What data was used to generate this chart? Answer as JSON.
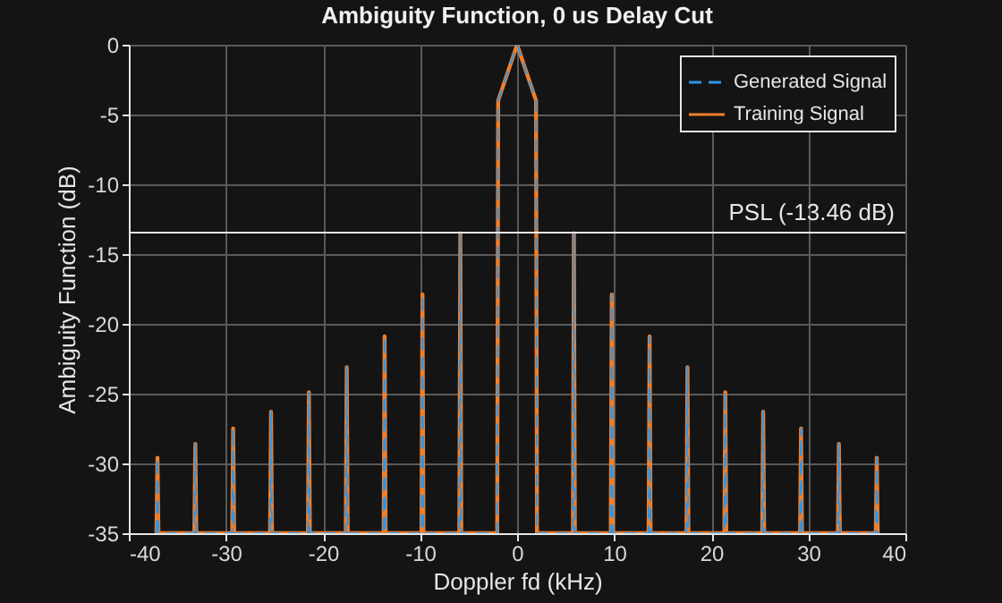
{
  "chart_data": {
    "type": "line",
    "title": "Ambiguity Function, 0 us Delay Cut",
    "xlabel": "Doppler fd (kHz)",
    "ylabel": "Ambiguity Function (dB)",
    "x": [
      -37.15,
      -37.05,
      -36.95,
      -33.25,
      -33.15,
      -33.05,
      -29.35,
      -29.25,
      -29.15,
      -25.45,
      -25.35,
      -25.25,
      -21.55,
      -21.45,
      -21.35,
      -17.65,
      -17.55,
      -17.45,
      -13.75,
      -13.65,
      -13.55,
      -9.85,
      -9.75,
      -9.65,
      -5.95,
      -5.85,
      -5.75,
      -2.05,
      -1.95,
      0,
      1.95,
      2.05,
      5.75,
      5.85,
      5.95,
      9.65,
      9.75,
      9.85,
      13.55,
      13.65,
      13.75,
      17.45,
      17.55,
      17.65,
      21.35,
      21.45,
      21.55,
      25.25,
      25.35,
      25.45,
      29.15,
      29.25,
      29.35,
      33.05,
      33.15,
      33.25,
      36.95,
      37.05,
      37.15
    ],
    "series": [
      {
        "name": "Generated Signal",
        "color": "#2d95e8",
        "line_style": "dashed",
        "values": [
          -35,
          -29.6,
          -35,
          -35,
          -28.6,
          -35,
          -35,
          -27.5,
          -35,
          -35,
          -26.3,
          -35,
          -35,
          -24.9,
          -35,
          -35,
          -23.1,
          -35,
          -35,
          -20.9,
          -35,
          -35,
          -17.9,
          -35,
          -35,
          -13.5,
          -35,
          -35,
          -4,
          0,
          -4,
          -35,
          -35,
          -13.5,
          -35,
          -35,
          -17.9,
          -35,
          -35,
          -20.9,
          -35,
          -35,
          -23.1,
          -35,
          -35,
          -24.9,
          -35,
          -35,
          -26.3,
          -35,
          -35,
          -27.5,
          -35,
          -35,
          -28.6,
          -35,
          -35,
          -29.6,
          -35
        ]
      },
      {
        "name": "Training Signal",
        "color": "#f07f2a",
        "line_style": "solid",
        "values": [
          -35,
          -29.6,
          -35,
          -35,
          -28.6,
          -35,
          -35,
          -27.5,
          -35,
          -35,
          -26.3,
          -35,
          -35,
          -24.9,
          -35,
          -35,
          -23.1,
          -35,
          -35,
          -20.9,
          -35,
          -35,
          -17.9,
          -35,
          -35,
          -13.5,
          -35,
          -35,
          -4,
          0,
          -4,
          -35,
          -35,
          -13.5,
          -35,
          -35,
          -17.9,
          -35,
          -35,
          -20.9,
          -35,
          -35,
          -23.1,
          -35,
          -35,
          -24.9,
          -35,
          -35,
          -26.3,
          -35,
          -35,
          -27.5,
          -35,
          -35,
          -28.6,
          -35,
          -35,
          -29.6,
          -35
        ]
      }
    ],
    "xlim": [
      -40,
      40
    ],
    "xticks": [
      -40,
      -30,
      -20,
      -10,
      0,
      10,
      20,
      30,
      40
    ],
    "ylim": [
      -35,
      0
    ],
    "yticks": [
      -35,
      -30,
      -25,
      -20,
      -15,
      -10,
      -5,
      0
    ],
    "ref_lines": [
      {
        "axis": "y",
        "value": -13.46,
        "label": "PSL (-13.46 dB)",
        "color": "#e6e6e6"
      }
    ],
    "grid": true,
    "legend": "top right",
    "marker": "none"
  }
}
